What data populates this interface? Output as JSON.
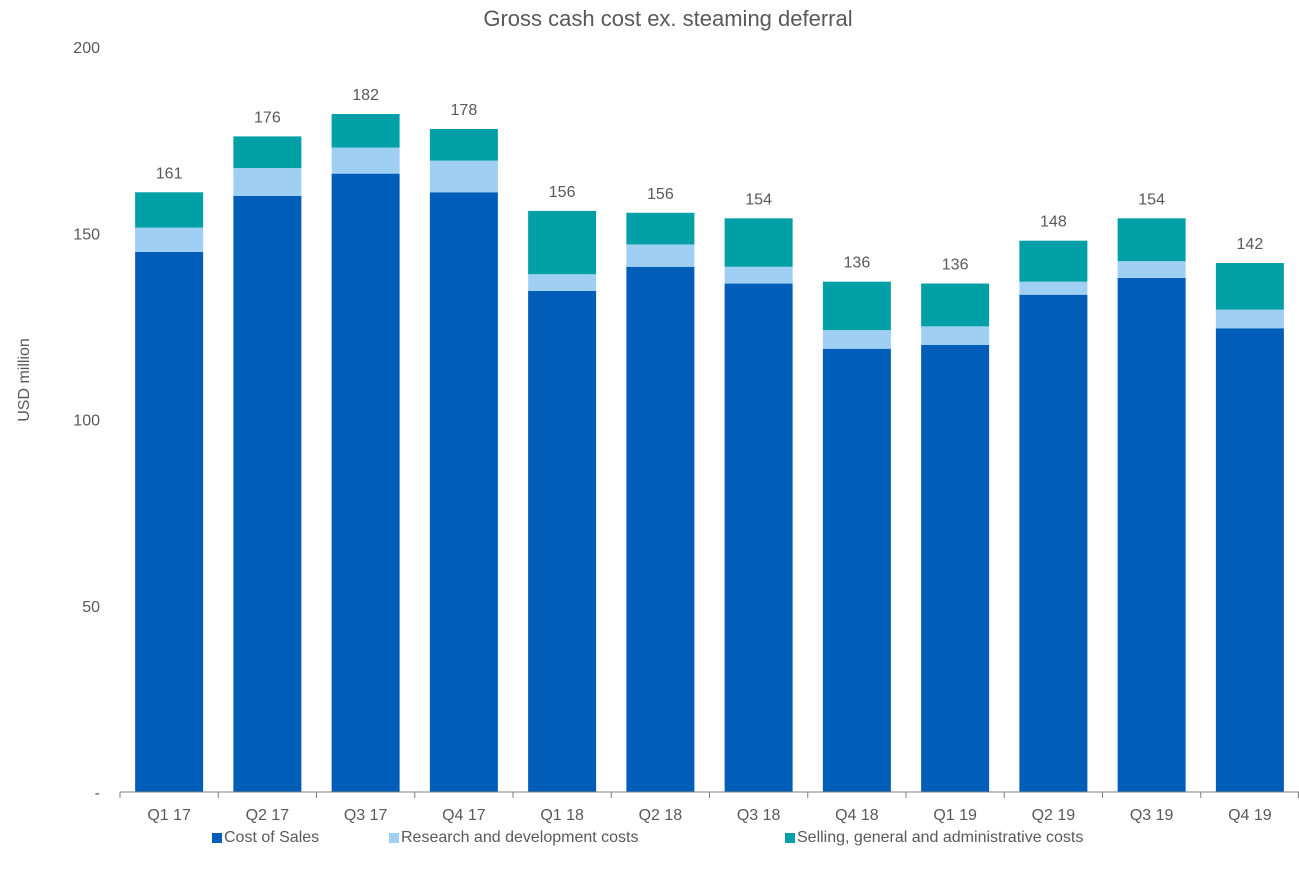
{
  "chart_data": {
    "type": "bar",
    "stacked": true,
    "title": "Gross cash cost ex. steaming deferral",
    "ylabel": "USD million",
    "xlabel": "",
    "ylim": [
      0,
      200
    ],
    "yticks": [
      {
        "value": 0,
        "label": "-"
      },
      {
        "value": 50,
        "label": "50"
      },
      {
        "value": 100,
        "label": "100"
      },
      {
        "value": 150,
        "label": "150"
      },
      {
        "value": 200,
        "label": "200"
      }
    ],
    "grid": false,
    "legend_position": "bottom",
    "categories": [
      "Q1 17",
      "Q2 17",
      "Q3 17",
      "Q4 17",
      "Q1 18",
      "Q2 18",
      "Q3 18",
      "Q4 18",
      "Q1 19",
      "Q2 19",
      "Q3 19",
      "Q4 19"
    ],
    "series": [
      {
        "name": "Cost of Sales",
        "color": "#005EB8",
        "values": [
          145,
          160,
          166,
          161,
          134.5,
          141,
          136.5,
          119,
          120,
          133.5,
          138,
          124.5
        ]
      },
      {
        "name": "Research and development costs",
        "color": "#9FCFF2",
        "values": [
          6.5,
          7.5,
          7,
          8.5,
          4.5,
          6,
          4.5,
          5,
          5,
          3.5,
          4.5,
          5
        ]
      },
      {
        "name": "Selling, general and administrative costs",
        "color": "#00A0A6",
        "values": [
          9.5,
          8.5,
          9,
          8.5,
          17,
          8.5,
          13,
          13,
          11.5,
          11,
          11.5,
          12.5
        ]
      }
    ],
    "totals": [
      "161",
      "176",
      "182",
      "178",
      "156",
      "156",
      "154",
      "136",
      "136",
      "148",
      "154",
      "142"
    ]
  }
}
